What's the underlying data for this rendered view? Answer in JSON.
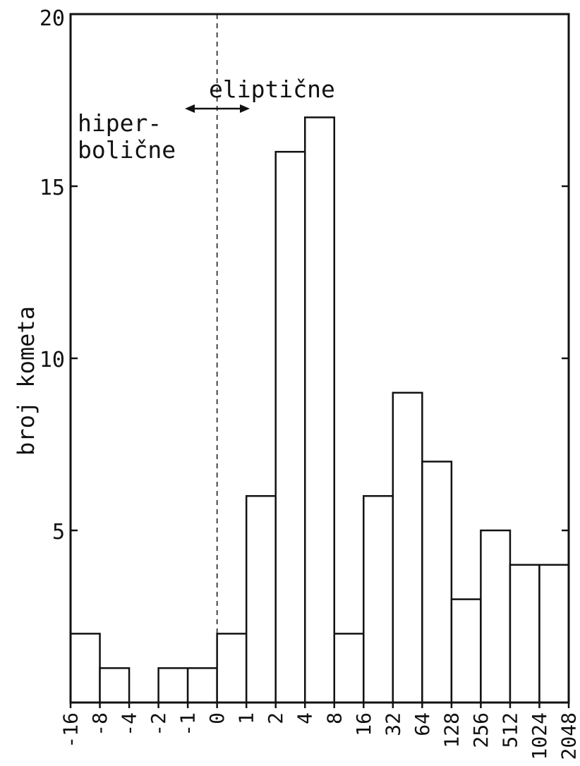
{
  "chart_data": {
    "type": "bar",
    "title": "",
    "xlabel": "",
    "ylabel": "broj kometa",
    "ylim": [
      0,
      20
    ],
    "yticks": [
      5,
      10,
      15,
      20
    ],
    "edges": [
      "-16",
      "-8",
      "-4",
      "-2",
      "-1",
      "0",
      "1",
      "2",
      "4",
      "8",
      "16",
      "32",
      "64",
      "128",
      "256",
      "512",
      "1024",
      "2048"
    ],
    "values": [
      2,
      1,
      0,
      1,
      1,
      2,
      6,
      16,
      17,
      2,
      6,
      9,
      7,
      3,
      5,
      4,
      4
    ],
    "divider_at_edge": "0",
    "annotations": {
      "elliptic": "eliptične",
      "hyperbolic_line1": "hiper-",
      "hyperbolic_line2": "bolične"
    },
    "grid": false
  }
}
